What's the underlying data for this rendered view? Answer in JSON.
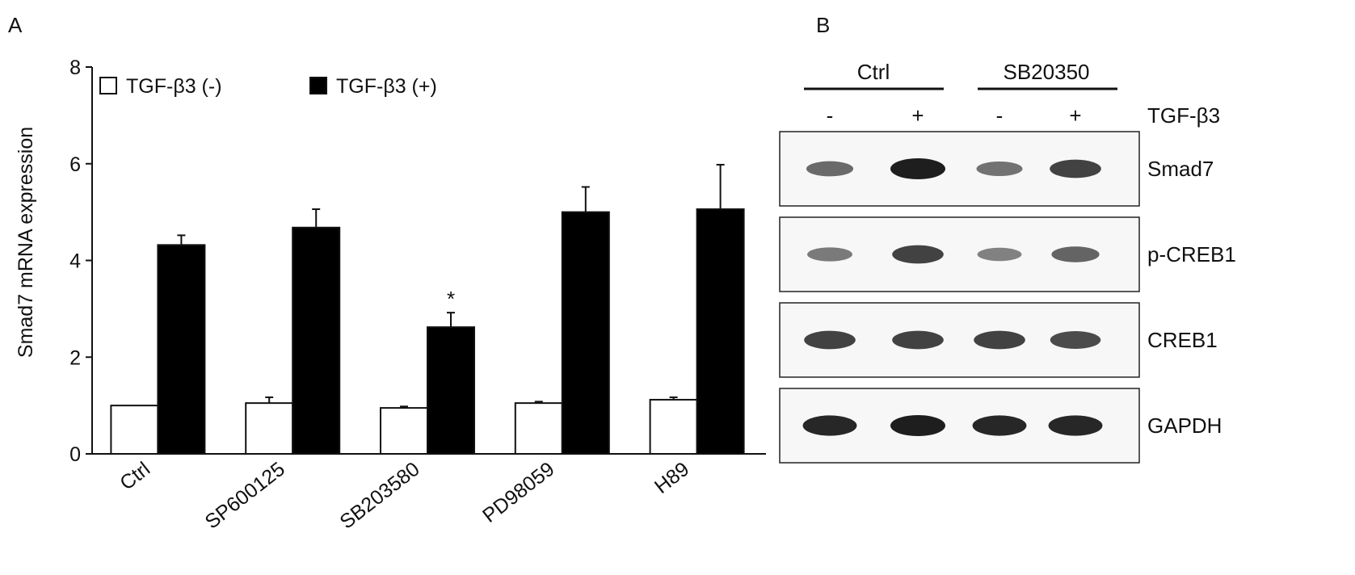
{
  "panels": {
    "a_label": "A",
    "b_label": "B"
  },
  "chart_data": {
    "type": "bar",
    "ylabel": "Smad7 mRNA expression",
    "xlabel": "",
    "ylim": [
      0,
      8
    ],
    "yticks": [
      0,
      2,
      4,
      6,
      8
    ],
    "grid": false,
    "legend_placement": "top-left",
    "categories": [
      "Ctrl",
      "SP600125",
      "SB203580",
      "PD98059",
      "H89"
    ],
    "series": [
      {
        "name": "TGF-β3 (-)",
        "fill": "#ffffff",
        "values": [
          1.0,
          1.05,
          0.95,
          1.05,
          1.12
        ],
        "errors": [
          0.0,
          0.12,
          0.03,
          0.03,
          0.05
        ]
      },
      {
        "name": "TGF-β3 (+)",
        "fill": "#000000",
        "values": [
          4.32,
          4.68,
          2.62,
          5.0,
          5.06
        ],
        "errors": [
          0.2,
          0.38,
          0.3,
          0.52,
          0.92
        ]
      }
    ],
    "annotations": [
      {
        "category": "SB203580",
        "series": 1,
        "text": "*"
      }
    ]
  },
  "blot": {
    "groups": [
      "Ctrl",
      "SB20350"
    ],
    "treatment_label": "TGF-β3",
    "lane_signs": [
      "-",
      "+",
      "-",
      "+"
    ],
    "rows": [
      {
        "label": "Smad7",
        "intensities": [
          0.55,
          1.0,
          0.5,
          0.8
        ]
      },
      {
        "label": "p-CREB1",
        "intensities": [
          0.45,
          0.8,
          0.4,
          0.6
        ]
      },
      {
        "label": "CREB1",
        "intensities": [
          0.8,
          0.8,
          0.8,
          0.75
        ]
      },
      {
        "label": "GAPDH",
        "intensities": [
          0.95,
          1.0,
          0.95,
          0.95
        ]
      }
    ]
  }
}
